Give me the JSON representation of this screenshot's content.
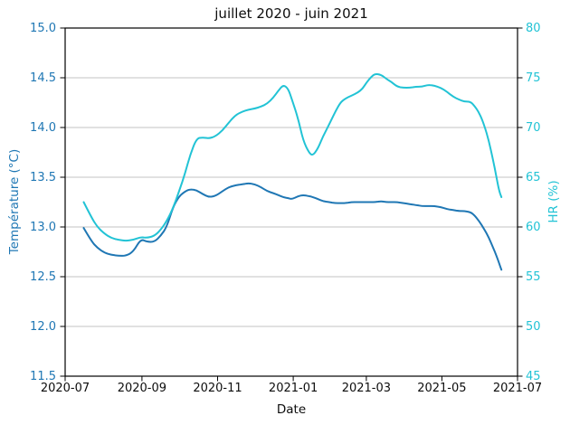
{
  "title": "juillet 2020 - juin 2021",
  "x_axis": {
    "label": "Date",
    "ticks": [
      "2020-07",
      "2020-09",
      "2020-11",
      "2021-01",
      "2021-03",
      "2021-05",
      "2021-07"
    ]
  },
  "y_left": {
    "label": "Température (°C)",
    "color": "#1f77b4",
    "ticks": [
      "15.0",
      "14.5",
      "14.0",
      "13.5",
      "13.0",
      "12.5",
      "12.0",
      "11.5"
    ]
  },
  "y_right": {
    "label": "HR (%)",
    "color": "#22c3d5",
    "ticks": [
      "80",
      "75",
      "70",
      "65",
      "60",
      "55",
      "50",
      "45"
    ]
  },
  "colors": {
    "temperature_line": "#1f77b4",
    "hr_line": "#22c3d5",
    "grid": "#c3c3c3",
    "spine": "#000000",
    "tick_mark": "#000000",
    "text": "#0d0d0d"
  },
  "chart_data": {
    "type": "line",
    "title": "juillet 2020 - juin 2021",
    "xlabel": "Date",
    "x_range": [
      "2020-07-01",
      "2021-07-01"
    ],
    "ylim_left": [
      11.5,
      15.0
    ],
    "ylim_right": [
      45,
      80
    ],
    "grid": true,
    "legend": "none",
    "x": [
      "2020-07-16",
      "2020-07-22",
      "2020-07-27",
      "2020-08-02",
      "2020-08-07",
      "2020-08-13",
      "2020-08-19",
      "2020-08-25",
      "2020-08-31",
      "2020-09-05",
      "2020-09-11",
      "2020-09-16",
      "2020-09-21",
      "2020-09-26",
      "2020-10-01",
      "2020-10-06",
      "2020-10-10",
      "2020-10-15",
      "2020-10-20",
      "2020-10-25",
      "2020-10-30",
      "2020-11-05",
      "2020-11-10",
      "2020-11-16",
      "2020-11-21",
      "2020-11-26",
      "2020-12-01",
      "2020-12-06",
      "2020-12-11",
      "2020-12-16",
      "2020-12-20",
      "2020-12-24",
      "2020-12-28",
      "2020-12-31",
      "2021-01-05",
      "2021-01-09",
      "2021-01-14",
      "2021-01-17",
      "2021-01-21",
      "2021-01-25",
      "2021-01-30",
      "2021-02-04",
      "2021-02-08",
      "2021-02-12",
      "2021-02-17",
      "2021-02-22",
      "2021-02-26",
      "2021-03-01",
      "2021-03-05",
      "2021-03-08",
      "2021-03-13",
      "2021-03-17",
      "2021-03-21",
      "2021-03-26",
      "2021-03-31",
      "2021-04-05",
      "2021-04-10",
      "2021-04-15",
      "2021-04-20",
      "2021-04-25",
      "2021-04-30",
      "2021-05-05",
      "2021-05-10",
      "2021-05-15",
      "2021-05-19",
      "2021-05-24",
      "2021-05-27",
      "2021-05-31",
      "2021-06-04",
      "2021-06-08",
      "2021-06-11",
      "2021-06-14",
      "2021-06-16",
      "2021-06-18"
    ],
    "series": [
      {
        "name": "Température (°C)",
        "axis": "left",
        "color": "#1f77b4",
        "values": [
          12.99,
          12.86,
          12.79,
          12.74,
          12.72,
          12.71,
          12.71,
          12.75,
          12.88,
          12.85,
          12.85,
          12.91,
          13.0,
          13.2,
          13.31,
          13.36,
          13.38,
          13.37,
          13.33,
          13.3,
          13.31,
          13.36,
          13.4,
          13.42,
          13.43,
          13.44,
          13.43,
          13.4,
          13.36,
          13.34,
          13.32,
          13.3,
          13.29,
          13.28,
          13.31,
          13.32,
          13.31,
          13.3,
          13.28,
          13.26,
          13.25,
          13.24,
          13.24,
          13.24,
          13.25,
          13.25,
          13.25,
          13.25,
          13.25,
          13.25,
          13.26,
          13.25,
          13.25,
          13.25,
          13.24,
          13.23,
          13.22,
          13.21,
          13.21,
          13.21,
          13.2,
          13.18,
          13.17,
          13.16,
          13.16,
          13.15,
          13.12,
          13.06,
          12.98,
          12.89,
          12.8,
          12.71,
          12.64,
          12.57
        ]
      },
      {
        "name": "HR (%)",
        "axis": "right",
        "color": "#22c3d5",
        "values": [
          62.5,
          61.0,
          60.0,
          59.3,
          58.9,
          58.7,
          58.6,
          58.7,
          59.0,
          58.9,
          59.1,
          59.7,
          60.6,
          61.9,
          63.6,
          65.5,
          67.3,
          68.9,
          69.0,
          68.9,
          69.1,
          69.7,
          70.5,
          71.3,
          71.6,
          71.8,
          71.9,
          72.1,
          72.4,
          73.0,
          73.7,
          74.3,
          73.9,
          72.8,
          70.9,
          68.7,
          67.4,
          67.2,
          67.9,
          69.1,
          70.3,
          71.6,
          72.5,
          72.9,
          73.2,
          73.5,
          73.9,
          74.5,
          75.1,
          75.4,
          75.3,
          74.9,
          74.6,
          74.1,
          74.0,
          74.0,
          74.1,
          74.1,
          74.3,
          74.2,
          74.0,
          73.6,
          73.1,
          72.8,
          72.6,
          72.6,
          72.2,
          71.5,
          70.3,
          68.6,
          66.9,
          65.0,
          63.7,
          63.0
        ]
      }
    ]
  }
}
